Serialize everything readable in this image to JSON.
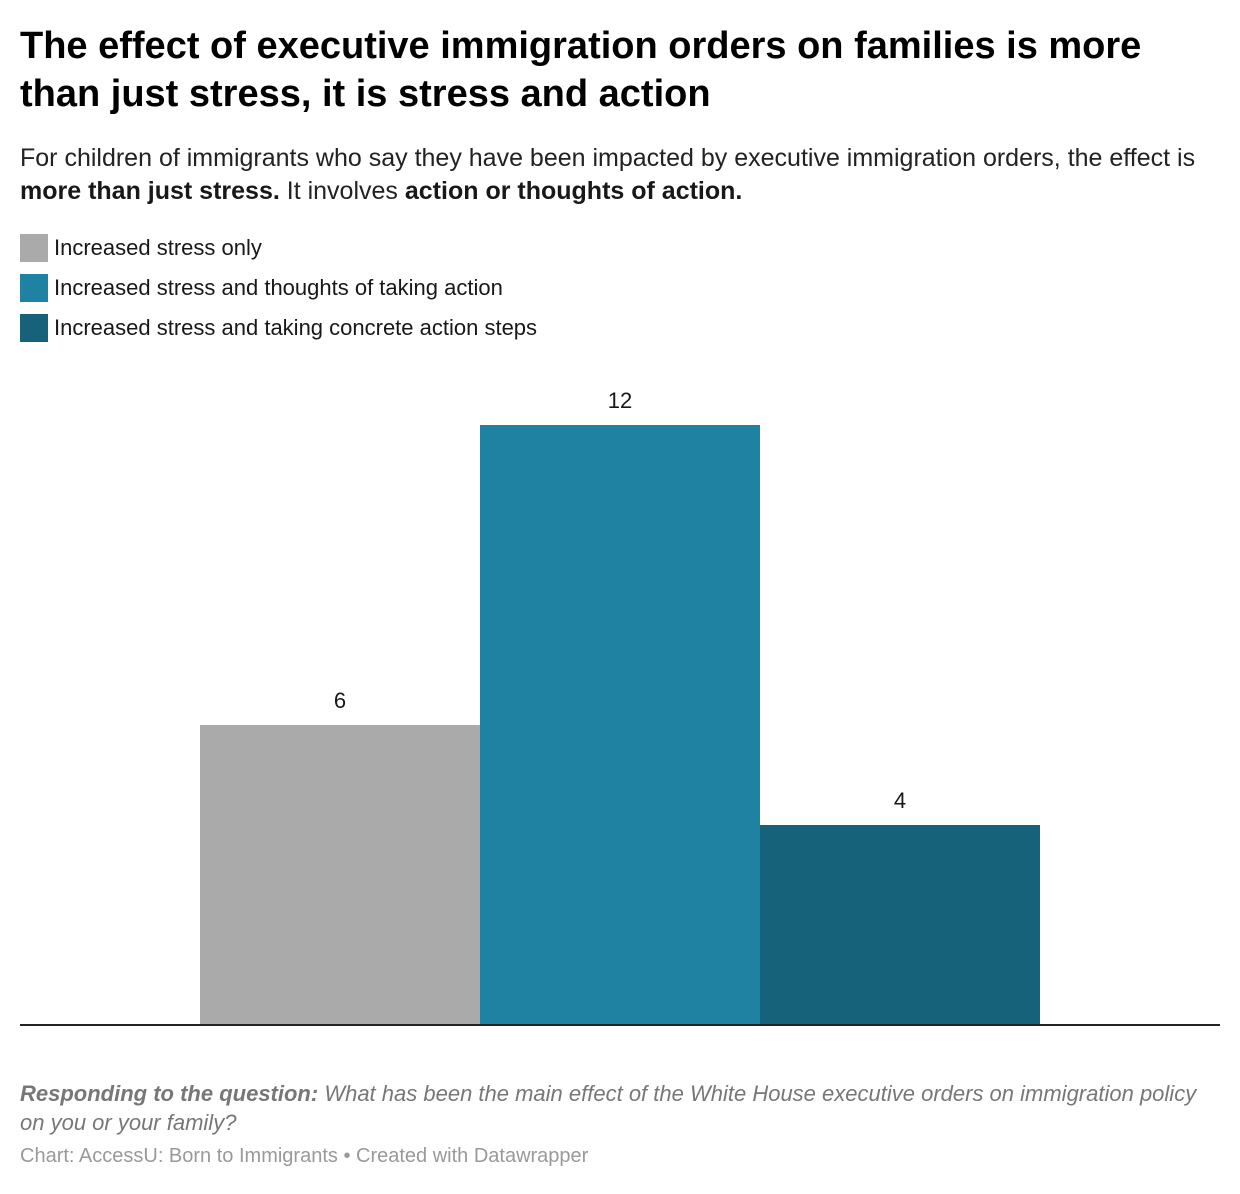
{
  "title": "The effect of executive immigration orders on families is more than just stress, it is stress and action",
  "subtitle": {
    "part1": "For children of immigrants who say they have been impacted by executive immigration orders, the effect is ",
    "bold1": "more than just stress.",
    "part2": " It involves ",
    "bold2": "action or thoughts of action."
  },
  "legend": [
    {
      "label": "Increased stress only",
      "color": "#aaaaaa"
    },
    {
      "label": "Increased stress and thoughts of taking action",
      "color": "#1f82a2"
    },
    {
      "label": "Increased stress and taking concrete action steps",
      "color": "#17627b"
    }
  ],
  "chart_data": {
    "type": "bar",
    "categories": [
      ""
    ],
    "series": [
      {
        "name": "Increased stress only",
        "values": [
          6
        ],
        "color": "#aaaaaa"
      },
      {
        "name": "Increased stress and thoughts of taking action",
        "values": [
          12
        ],
        "color": "#1f82a2"
      },
      {
        "name": "Increased stress and taking concrete action steps",
        "values": [
          4
        ],
        "color": "#17627b"
      }
    ],
    "ylim": [
      0,
      12
    ],
    "grid": false,
    "legend_position": "top-left"
  },
  "notes": {
    "label": "Responding to the question:",
    "text": " What has been the main effect of the White House executive orders on immigration policy on you or your family?"
  },
  "credit": "Chart: AccessU: Born to Immigrants • Created with Datawrapper"
}
